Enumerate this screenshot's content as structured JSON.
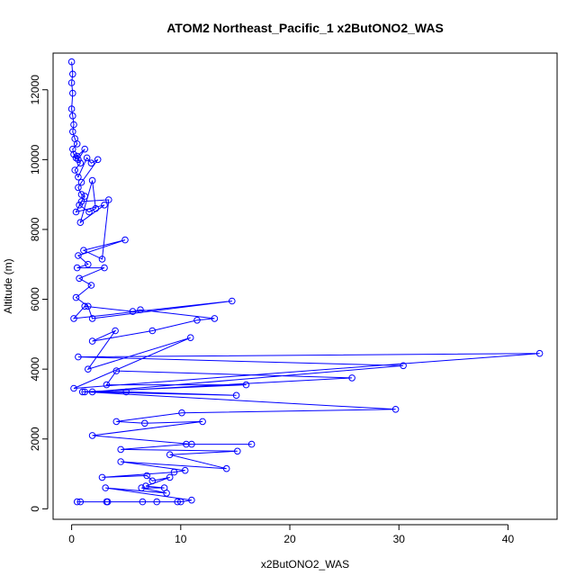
{
  "chart_data": {
    "type": "line",
    "title": "ATOM2 Northeast_Pacific_1 x2ButONO2_WAS",
    "xlabel": "x2ButONO2_WAS",
    "ylabel": "Altitude (m)",
    "xlim": [
      -1.7,
      44.5
    ],
    "ylim": [
      -300,
      13050
    ],
    "xticks": [
      0,
      10,
      20,
      30,
      40
    ],
    "yticks": [
      0,
      2000,
      4000,
      6000,
      8000,
      10000,
      12000
    ],
    "grid": false,
    "legend": "none",
    "color": "#0000ff",
    "marker": "open-circle",
    "series": [
      {
        "x": [
          0.0,
          0.1,
          0.0,
          0.1,
          0.0,
          0.1,
          0.2,
          0.1,
          0.3,
          0.5,
          0.1,
          0.2,
          0.4,
          0.6,
          1.2,
          0.5,
          0.8,
          0.3,
          0.6,
          1.4,
          1.8,
          2.4,
          0.9,
          0.6,
          0.9,
          1.2,
          0.7,
          1.6,
          2.2,
          1.9,
          0.8,
          3.0,
          0.4,
          0.9,
          3.4,
          2.8,
          1.1,
          4.9,
          0.6,
          1.5,
          0.5,
          3.0,
          0.7,
          1.8,
          0.4,
          1.5,
          1.9,
          14.7,
          0.2,
          1.2,
          5.6,
          6.3,
          13.1,
          11.5,
          7.4,
          1.9,
          4.0,
          1.5,
          10.9,
          0.2,
          42.9,
          0.6,
          30.4,
          1.9,
          25.7,
          4.1,
          3.2,
          16.0,
          1.0,
          5.0,
          15.1,
          1.2,
          29.7,
          10.1,
          4.1,
          6.7,
          12.0,
          1.9,
          11.0,
          16.5,
          10.5,
          4.5,
          15.2,
          9.0,
          14.2,
          4.5,
          10.4,
          9.4,
          2.8,
          6.9,
          7.4,
          9.0,
          6.8,
          8.5,
          6.4,
          8.7,
          3.1,
          11.0,
          10.0,
          7.8,
          6.5,
          3.3,
          0.8,
          9.7,
          0.5,
          3.2
        ],
        "y": [
          12800,
          12450,
          12200,
          11900,
          11450,
          11250,
          11000,
          10800,
          10600,
          10450,
          10300,
          10150,
          10050,
          10000,
          10300,
          10100,
          9900,
          9700,
          9500,
          10050,
          9900,
          10000,
          9350,
          9200,
          9000,
          8950,
          8700,
          8500,
          8600,
          9400,
          8200,
          8700,
          8500,
          8800,
          8850,
          7150,
          7400,
          7700,
          7250,
          7000,
          6900,
          6900,
          6600,
          6400,
          6050,
          5800,
          5450,
          5950,
          5450,
          5800,
          5650,
          5700,
          5450,
          5400,
          5100,
          4800,
          5100,
          4000,
          4900,
          3450,
          4450,
          4350,
          4100,
          3350,
          3750,
          3950,
          3550,
          3550,
          3350,
          3350,
          3250,
          3350,
          2850,
          2750,
          2500,
          2450,
          2500,
          2100,
          1850,
          1850,
          1850,
          1700,
          1650,
          1550,
          1150,
          1350,
          1100,
          1050,
          900,
          950,
          800,
          900,
          650,
          600,
          600,
          450,
          600,
          250,
          200,
          200,
          200,
          200,
          200,
          200,
          200,
          200
        ]
      }
    ]
  }
}
